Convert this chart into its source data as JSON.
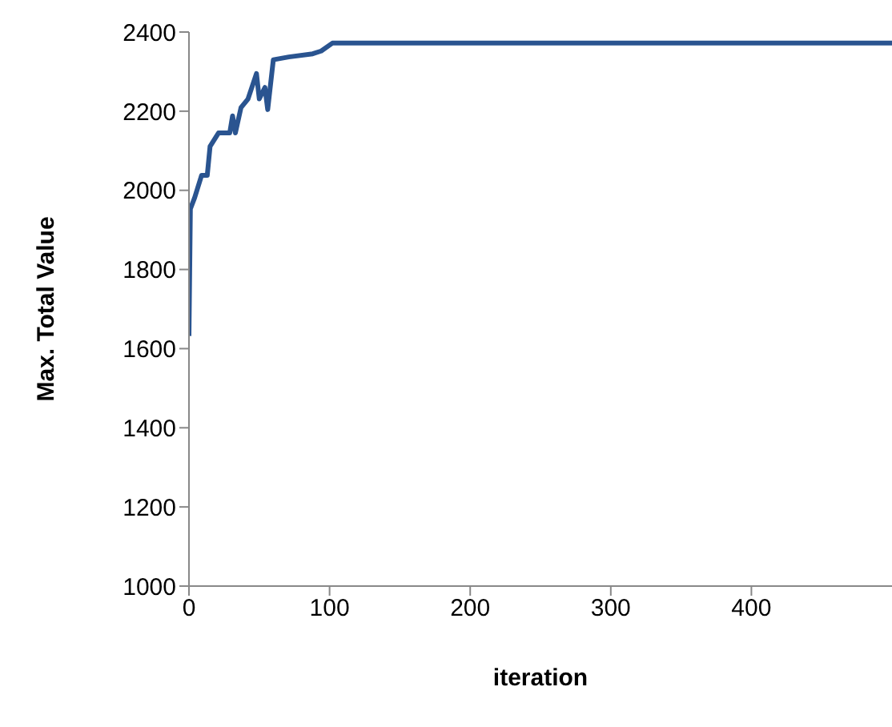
{
  "chart_data": {
    "type": "line",
    "xlabel": "iteration",
    "ylabel": "Max. Total Value",
    "x": [
      0,
      1,
      4,
      9,
      13,
      15,
      21,
      29,
      31,
      33,
      37,
      42,
      48,
      50,
      54,
      56,
      60,
      71,
      88,
      94,
      102,
      500
    ],
    "series": [
      {
        "color": "#2a5490",
        "values": [
          1632,
          1953,
          1981,
          2038,
          2038,
          2111,
          2145,
          2145,
          2188,
          2145,
          2209,
          2231,
          2295,
          2231,
          2260,
          2204,
          2330,
          2337,
          2345,
          2352,
          2372,
          2372
        ]
      }
    ],
    "xlim": [
      0,
      500
    ],
    "xticks": [
      0,
      100,
      200,
      300,
      400
    ],
    "ylim": [
      1000,
      2400
    ],
    "yticks": [
      1000,
      1200,
      1400,
      1600,
      1800,
      2000,
      2200,
      2400
    ],
    "grid": false,
    "legend": false,
    "marker": "none",
    "line_style": "solid"
  }
}
